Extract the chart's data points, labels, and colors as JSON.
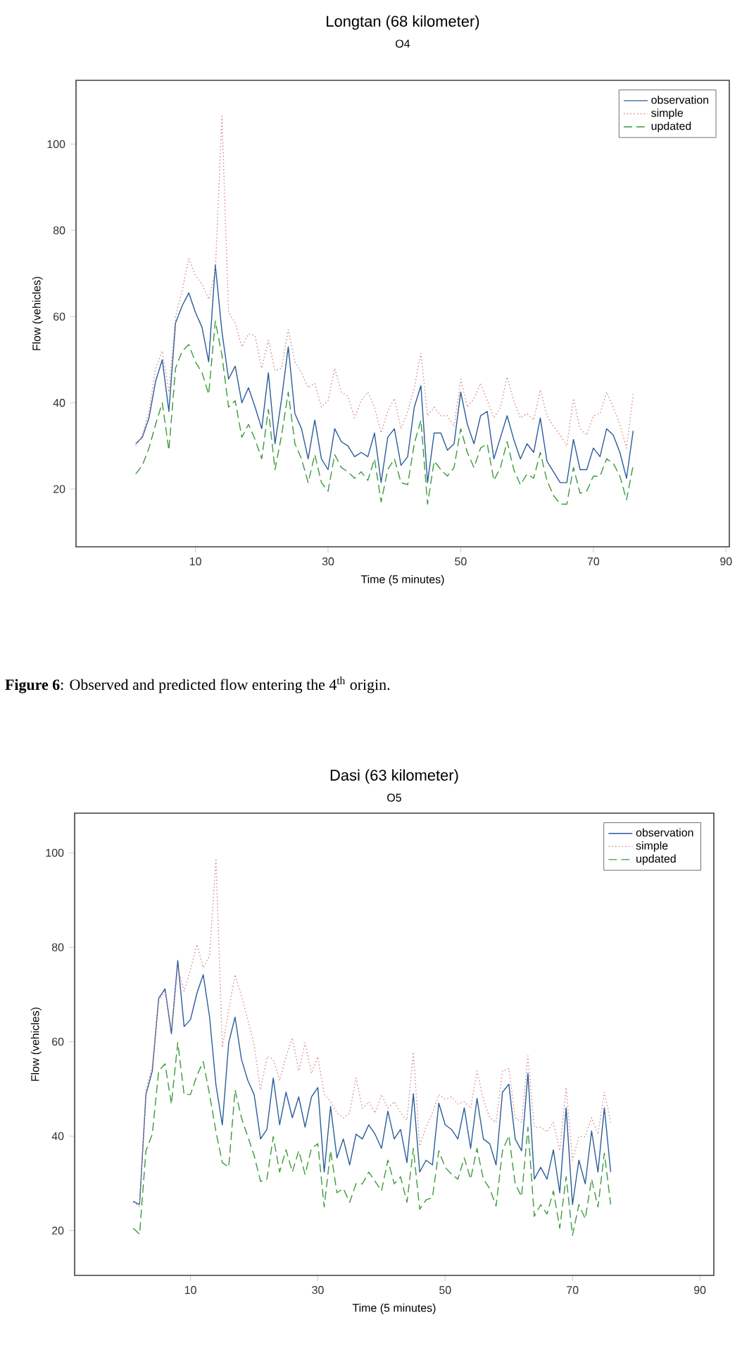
{
  "chart_data": [
    {
      "type": "line",
      "title": "Longtan  (68 kilometer)",
      "subtitle": "O4",
      "xlabel": "Time (5 minutes)",
      "ylabel": "Flow (vehicles)",
      "annotations": [
        "**Figure 6**: Observed and predicted flow entering the  4$^{th}$  origin."
      ],
      "x": [
        1,
        2,
        3,
        4,
        5,
        6,
        7,
        8,
        9,
        10,
        11,
        12,
        13,
        14,
        15,
        16,
        17,
        18,
        19,
        20,
        21,
        22,
        23,
        24,
        25,
        26,
        27,
        28,
        29,
        30,
        31,
        32,
        33,
        34,
        35,
        36,
        37,
        38,
        39,
        40,
        41,
        42,
        43,
        44,
        45,
        46,
        47,
        48,
        49,
        50,
        51,
        52,
        53,
        54,
        55,
        56,
        57,
        58,
        59,
        60,
        61,
        62,
        63,
        64,
        65,
        66,
        67,
        68,
        69,
        70,
        71,
        72,
        73,
        74,
        75,
        76
      ],
      "xlim": [
        -8,
        90.5
      ],
      "ylim": [
        6.6,
        114.8
      ],
      "xticks": [
        10,
        30,
        50,
        70,
        90
      ],
      "yticks": [
        20,
        40,
        60,
        80,
        100
      ],
      "legend": "top right",
      "series": [
        {
          "name": "observation",
          "color": "#2a5c9a",
          "line_style": "solid",
          "values": [
            30.5,
            32,
            36.5,
            45,
            50,
            38,
            58.5,
            62.5,
            65.5,
            61,
            57.5,
            49.5,
            72,
            56.5,
            45.5,
            48.5,
            40,
            43.5,
            39,
            34,
            47,
            30.5,
            41,
            53,
            37.5,
            34,
            27,
            36,
            27,
            24.5,
            34,
            31,
            30,
            27.5,
            28.5,
            27.5,
            33,
            21.5,
            32,
            34,
            25.5,
            27.5,
            39,
            44,
            21.5,
            33,
            33,
            29,
            30.5,
            42.5,
            35,
            30.5,
            37,
            38,
            27,
            32,
            37,
            31.5,
            27,
            30.5,
            28.5,
            36.5,
            26.5,
            24,
            21.5,
            21.5,
            31.5,
            24.5,
            24.5,
            29.5,
            27.5,
            34,
            32.5,
            28.5,
            22.5,
            33.5
          ]
        },
        {
          "name": "simple",
          "color": "#d98a8a",
          "line_style": "dotted",
          "values": [
            30,
            32.5,
            38,
            48,
            52,
            42.5,
            60,
            66,
            73.5,
            69.5,
            67.5,
            64,
            70.5,
            106.5,
            61,
            58.5,
            53,
            56,
            55.5,
            48,
            54.5,
            47.5,
            48,
            57,
            49.5,
            47,
            43.5,
            44.5,
            39,
            40.5,
            48,
            42.5,
            41.5,
            36.5,
            40.5,
            42.5,
            39,
            33,
            38,
            41,
            34,
            38,
            43.5,
            51.5,
            37,
            39,
            37,
            37,
            34.5,
            45.5,
            39,
            41,
            44.5,
            40.5,
            36.5,
            39,
            46,
            40.5,
            36.5,
            37.5,
            36,
            43,
            37,
            34.5,
            32.5,
            30,
            41,
            34,
            32.5,
            37,
            37.5,
            42.5,
            39,
            35,
            29.5,
            42
          ]
        },
        {
          "name": "updated",
          "color": "#3a9a3a",
          "line_style": "dashed",
          "values": [
            23.5,
            25.5,
            29.5,
            35,
            40,
            29,
            48,
            52,
            53.5,
            49.5,
            47,
            42,
            59,
            51,
            39,
            40.5,
            32,
            35,
            31.5,
            27,
            38.5,
            24.5,
            32.5,
            42.5,
            30.5,
            27,
            21.5,
            28,
            21.5,
            19.5,
            28,
            25,
            24,
            22.5,
            24,
            22,
            27,
            17,
            24.5,
            27,
            21.5,
            21,
            30.5,
            36,
            16.5,
            26.5,
            24.5,
            23,
            25,
            34,
            28.5,
            25,
            29.5,
            30.5,
            22,
            25,
            31,
            24.5,
            21,
            23.5,
            22.5,
            28.5,
            22,
            18.5,
            16.5,
            16.5,
            25,
            19,
            19.5,
            23,
            23,
            27,
            26,
            23,
            17.5,
            25.5
          ]
        }
      ]
    },
    {
      "type": "line",
      "title": "Dasi  (63 kilometer)",
      "subtitle": "O5",
      "xlabel": "Time (5 minutes)",
      "ylabel": "Flow (vehicles)",
      "x": [
        1,
        2,
        3,
        4,
        5,
        6,
        7,
        8,
        9,
        10,
        11,
        12,
        13,
        14,
        15,
        16,
        17,
        18,
        19,
        20,
        21,
        22,
        23,
        24,
        25,
        26,
        27,
        28,
        29,
        30,
        31,
        32,
        33,
        34,
        35,
        36,
        37,
        38,
        39,
        40,
        41,
        42,
        43,
        44,
        45,
        46,
        47,
        48,
        49,
        50,
        51,
        52,
        53,
        54,
        55,
        56,
        57,
        58,
        59,
        60,
        61,
        62,
        63,
        64,
        65,
        66,
        67,
        68,
        69,
        70,
        71,
        72,
        73,
        74,
        75,
        76
      ],
      "xlim": [
        -8.2,
        92.2
      ],
      "ylim": [
        10.5,
        108.4
      ],
      "xticks": [
        10,
        30,
        50,
        70,
        90
      ],
      "yticks": [
        20,
        40,
        60,
        80,
        100
      ],
      "legend": "top right",
      "series": [
        {
          "name": "observation",
          "color": "#2a5c9a",
          "line_style": "solid",
          "values": [
            26.2,
            25.5,
            48.8,
            53.8,
            69.2,
            71.2,
            61.7,
            77.2,
            63.2,
            64.7,
            70.2,
            74.2,
            65.2,
            50.8,
            42.4,
            59.8,
            65.2,
            56.3,
            51.8,
            48.8,
            39.4,
            41.4,
            52.3,
            42.4,
            49.3,
            43.9,
            48.3,
            41.9,
            48.3,
            50.3,
            32.4,
            46.3,
            35.4,
            39.4,
            33.9,
            40.4,
            39.4,
            42.4,
            40.4,
            37.4,
            45.3,
            39.4,
            41.4,
            34.4,
            49,
            32.4,
            34.9,
            33.9,
            47,
            42.4,
            41.4,
            39.4,
            46,
            37.4,
            48,
            39.4,
            38.4,
            33.9,
            49.3,
            51,
            39.4,
            36.9,
            53.3,
            30.9,
            33.4,
            30.9,
            37.1,
            28,
            46,
            25.5,
            34.9,
            29.9,
            41.1,
            32.4,
            46,
            32.4
          ]
        },
        {
          "name": "simple",
          "color": "#d98a8a",
          "line_style": "dotted",
          "values": [
            26,
            25,
            49.8,
            54.8,
            68.7,
            70.7,
            62.7,
            75.7,
            70.7,
            75.2,
            80.6,
            75.7,
            78.2,
            98.8,
            58.8,
            66.7,
            74.2,
            69.7,
            64.7,
            59.3,
            49.8,
            56.8,
            56.3,
            51.8,
            56.8,
            60.8,
            53.8,
            59.8,
            53.3,
            56.8,
            48.8,
            47.3,
            44.9,
            43.9,
            44.9,
            52.3,
            45.9,
            47.3,
            44.9,
            48.8,
            45.9,
            47.3,
            44.9,
            43.4,
            57.8,
            37.9,
            41.9,
            44.9,
            48.8,
            47.8,
            48.3,
            46.8,
            47.3,
            45.9,
            53.8,
            47.8,
            43.9,
            42.9,
            53.8,
            54.3,
            43.9,
            42.9,
            57,
            41.9,
            41.9,
            40.9,
            42.9,
            36.9,
            50.3,
            34.9,
            39.9,
            39.9,
            43.9,
            40.4,
            49.3,
            42.9
          ]
        },
        {
          "name": "updated",
          "color": "#3a9a3a",
          "line_style": "dashed",
          "values": [
            20.5,
            19.2,
            36.9,
            40.4,
            53.8,
            55.3,
            46.8,
            59.8,
            48.8,
            48.8,
            52.8,
            55.8,
            48.8,
            40.9,
            34.4,
            33.4,
            49.8,
            43.9,
            39.9,
            35.9,
            30.4,
            30.9,
            39.9,
            32.4,
            37.1,
            32.4,
            36.9,
            31.9,
            37.4,
            38.4,
            25,
            36.9,
            28,
            28.9,
            26,
            29.9,
            29.9,
            32.4,
            30.4,
            28.4,
            34.9,
            29.9,
            31.4,
            26,
            37.4,
            24.5,
            26.5,
            27,
            36.9,
            33.4,
            31.9,
            30.9,
            35.4,
            30.9,
            37.4,
            30.9,
            28.9,
            25.2,
            36.9,
            40.1,
            29.9,
            27.2,
            41.9,
            23,
            25.5,
            23.5,
            28.4,
            20.5,
            31.4,
            19,
            25.5,
            22.5,
            30.9,
            25,
            36.4,
            25.5
          ]
        }
      ]
    }
  ]
}
